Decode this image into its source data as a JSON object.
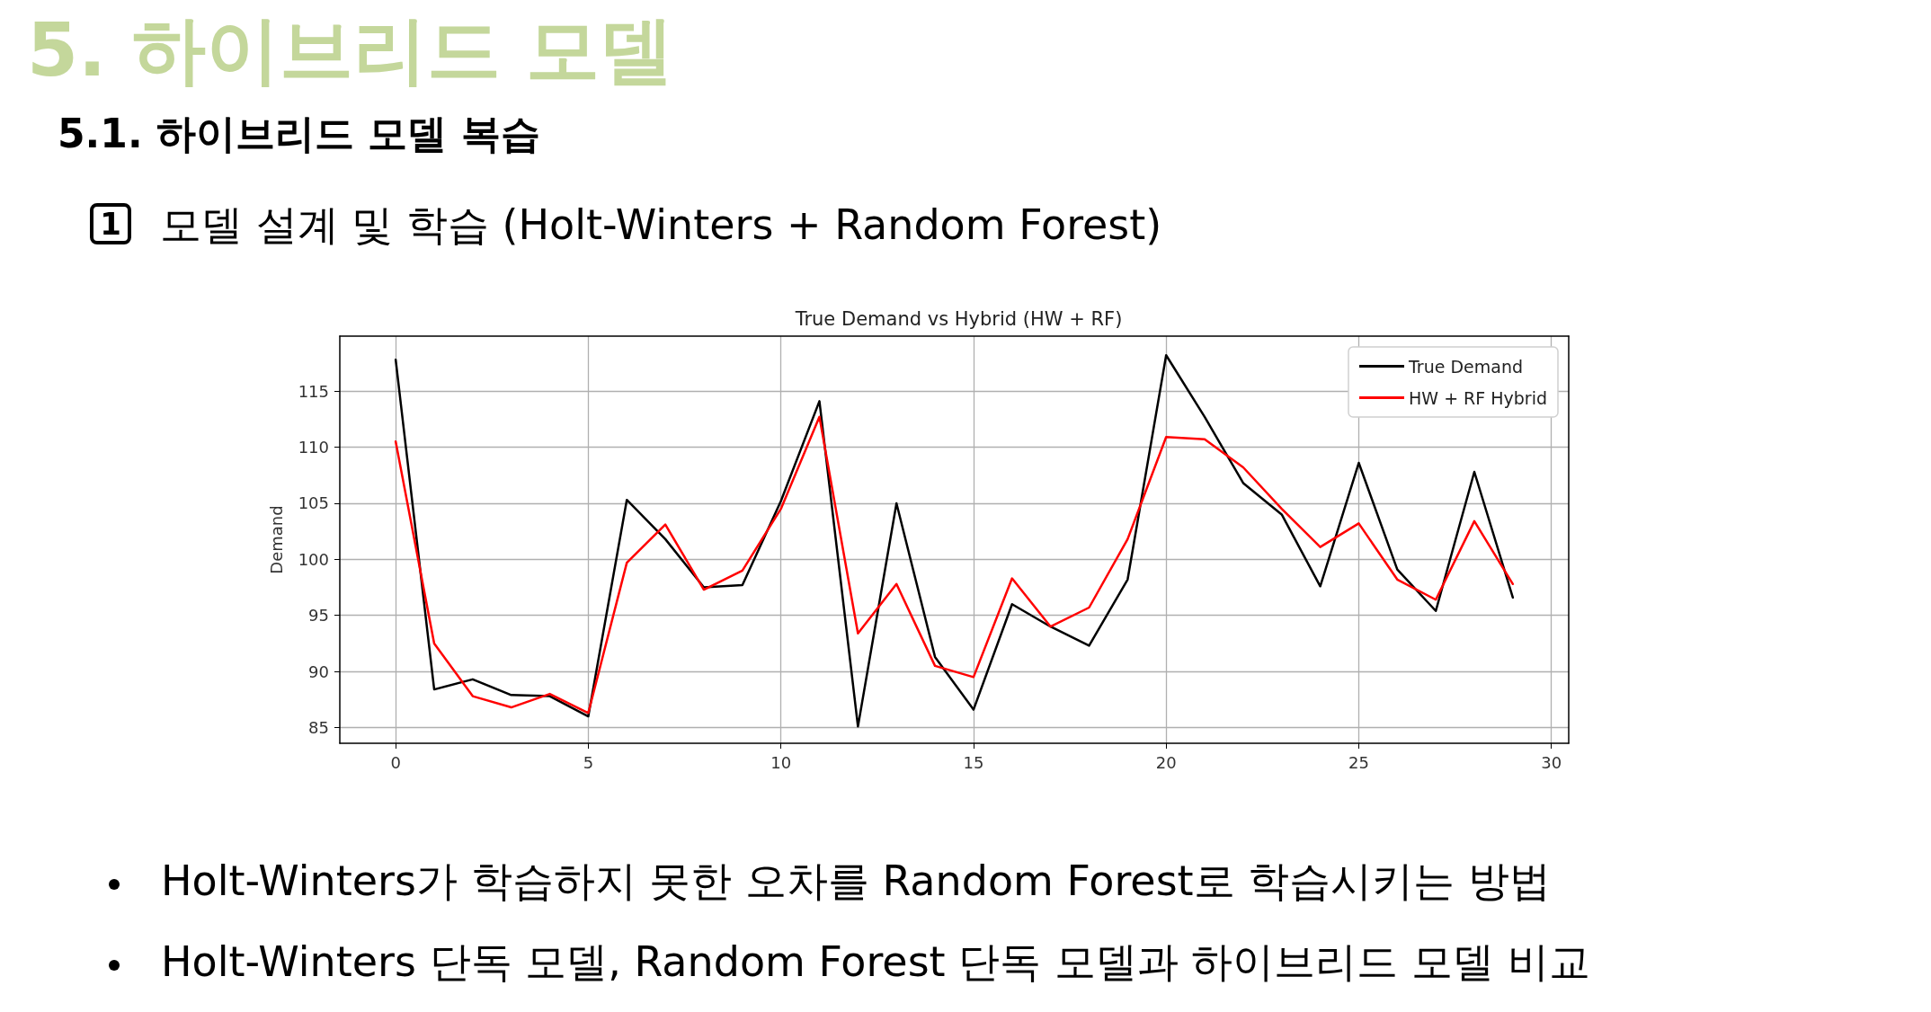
{
  "chart_data": {
    "type": "line",
    "title": "True Demand vs Hybrid (HW + RF)",
    "ylabel": "Demand",
    "annotations": [
      "5. 하이브리드 모델",
      "5.1. 하이브리드 모델 복습",
      "1",
      "모델 설계 및 학습 (Holt-Winters + Random Forest)",
      "Holt-Winters가 학습하지 못한 오차를 Random Forest로 학습시키는 방법",
      "Holt-Winters 단독 모델, Random Forest 단독 모델과 하이브리드 모델 비교"
    ],
    "x": [
      0,
      1,
      2,
      3,
      4,
      5,
      6,
      7,
      8,
      9,
      10,
      11,
      12,
      13,
      14,
      15,
      16,
      17,
      18,
      19,
      20,
      21,
      22,
      23,
      24,
      25,
      26,
      27,
      28,
      29
    ],
    "series": [
      {
        "name": "True Demand",
        "color": "#000000",
        "values": [
          117.8,
          88.4,
          89.3,
          87.9,
          87.8,
          86.0,
          105.3,
          101.8,
          97.5,
          97.7,
          105.2,
          114.1,
          85.1,
          105.0,
          91.3,
          86.6,
          96.0,
          94.0,
          92.3,
          98.2,
          118.2,
          112.7,
          106.8,
          104.0,
          97.6,
          108.6,
          99.1,
          95.4,
          107.8,
          96.6
        ]
      },
      {
        "name": "HW + RF Hybrid",
        "color": "#ff0000",
        "values": [
          110.5,
          92.5,
          87.8,
          86.8,
          88.0,
          86.3,
          99.7,
          103.1,
          97.3,
          99.0,
          104.5,
          112.7,
          93.4,
          97.8,
          90.5,
          89.5,
          98.3,
          94.0,
          95.7,
          101.8,
          110.9,
          110.7,
          108.2,
          104.5,
          101.1,
          103.2,
          98.2,
          96.4,
          103.4,
          97.8
        ]
      }
    ],
    "xlim": [
      -1.45,
      30.45
    ],
    "xticks": [
      0,
      5,
      10,
      15,
      20,
      25,
      30
    ],
    "ylim": [
      83.6,
      119.9
    ],
    "yticks": [
      85,
      90,
      95,
      100,
      105,
      110,
      115
    ],
    "grid": true,
    "legend": "top right",
    "marker": "none",
    "line_style": "solid"
  }
}
